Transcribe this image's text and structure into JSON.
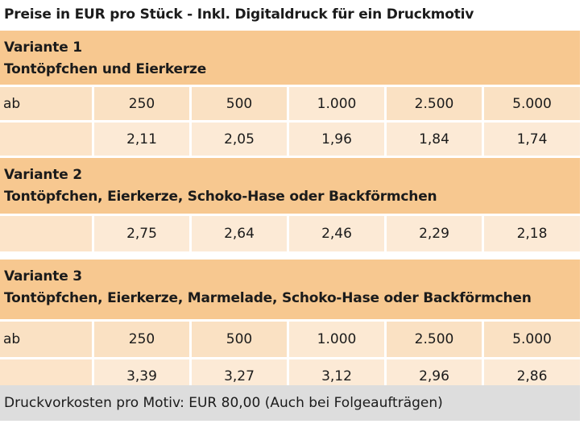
{
  "caption": "Preise in EUR pro Stück - Inkl. Digitaldruck für ein Druckmotiv",
  "variants": [
    {
      "title": "Variante 1",
      "description": "Tontöpfchen und Eierkerze",
      "qty_label": "ab",
      "quantities": [
        "250",
        "500",
        "1.000",
        "2.500",
        "5.000"
      ],
      "prices": [
        "2,11",
        "2,05",
        "1,96",
        "1,84",
        "1,74"
      ]
    },
    {
      "title": "Variante 2",
      "description": "Tontöpfchen, Eierkerze, Schoko-Hase oder Backförmchen",
      "prices": [
        "2,75",
        "2,64",
        "2,46",
        "2,29",
        "2,18"
      ]
    },
    {
      "title": "Variante 3",
      "description": "Tontöpfchen, Eierkerze, Marmelade, Schoko-Hase oder Backförmchen",
      "qty_label": "ab",
      "quantities": [
        "250",
        "500",
        "1.000",
        "2.500",
        "5.000"
      ],
      "prices": [
        "3,39",
        "3,27",
        "3,12",
        "2,96",
        "2,86"
      ]
    }
  ],
  "footer": "Druckvorkosten pro Motiv: EUR 80,00 (Auch bei Folgeaufträgen)",
  "colors": {
    "header": "#f7c890",
    "quantity_row": "#fae1c3",
    "price_row": "#fcead6",
    "footer": "#dddddd"
  }
}
